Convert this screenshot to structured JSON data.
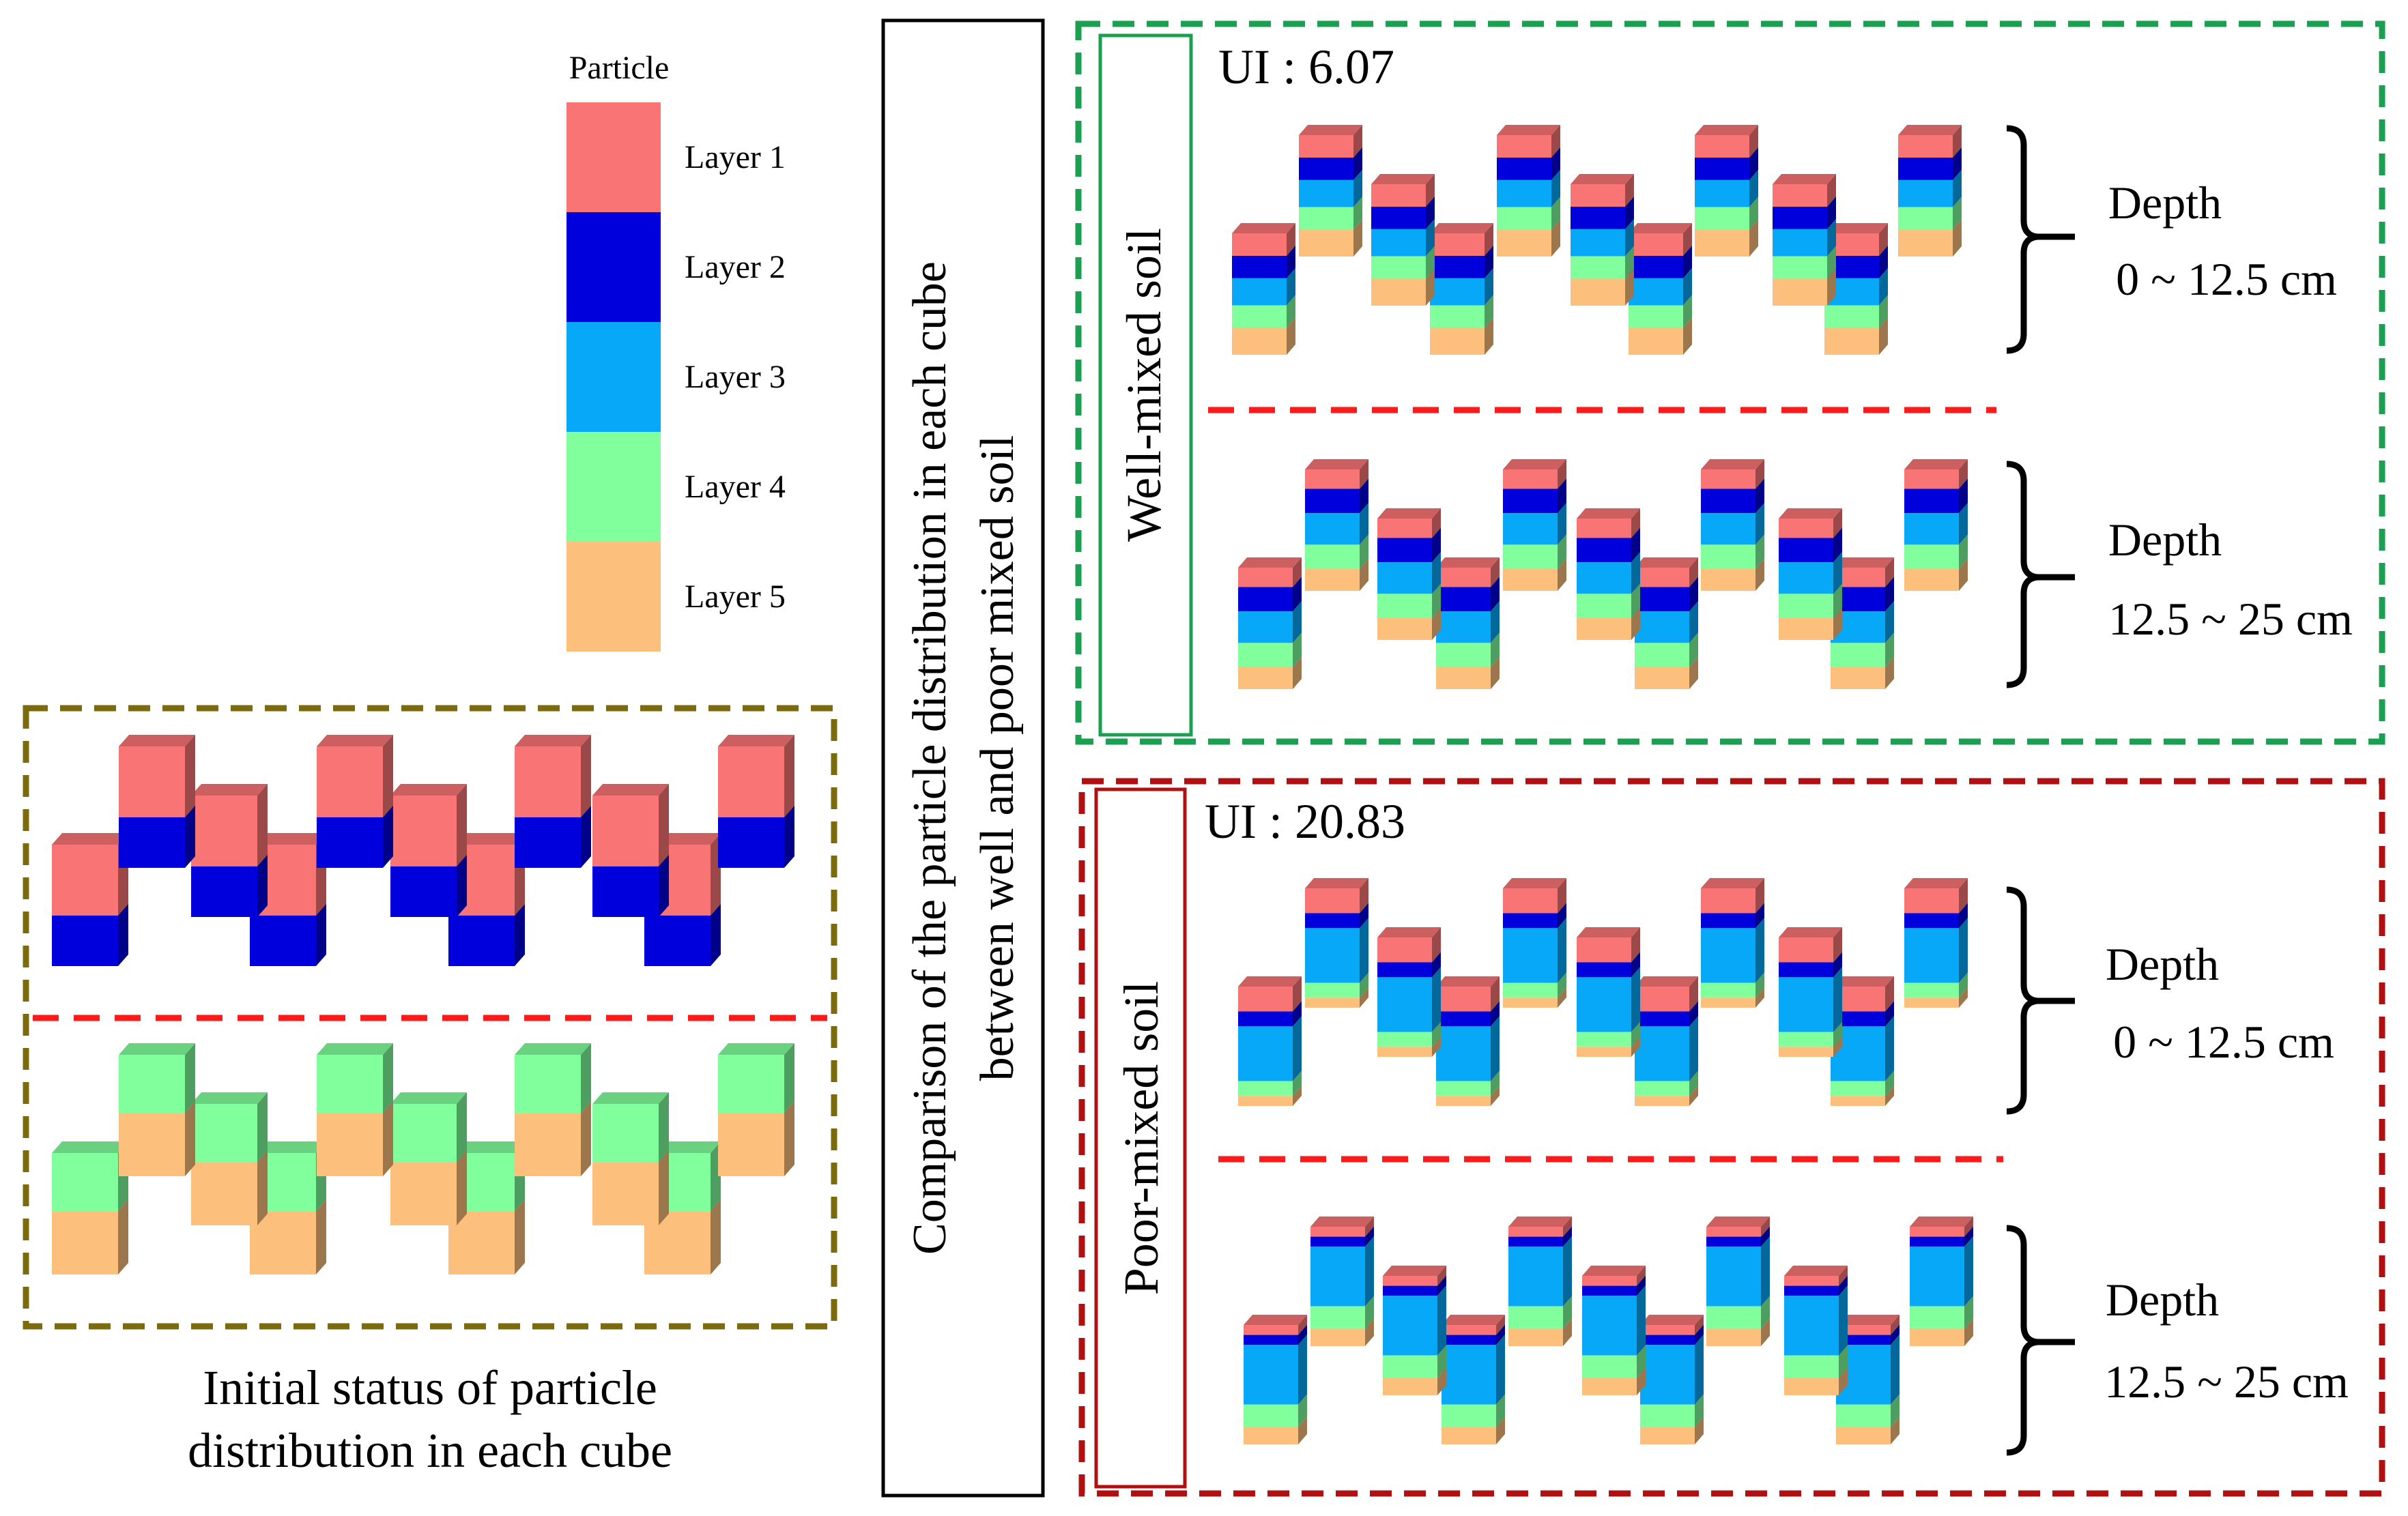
{
  "colors": {
    "layer1": "#F97474",
    "layer2": "#0000DC",
    "layer3": "#08A8F8",
    "layer4": "#80FF9C",
    "layer5": "#FCC07C",
    "initial_frame": "#7B6A0E",
    "well_frame": "#1AA050",
    "poor_frame": "#B01010",
    "divider": "#FF1A1A"
  },
  "legend": {
    "title": "Particle",
    "items": [
      {
        "label": "Layer 1",
        "color_key": "layer1"
      },
      {
        "label": "Layer 2",
        "color_key": "layer2"
      },
      {
        "label": "Layer 3",
        "color_key": "layer3"
      },
      {
        "label": "Layer 4",
        "color_key": "layer4"
      },
      {
        "label": "Layer 5",
        "color_key": "layer5"
      }
    ]
  },
  "initial": {
    "caption_line1": "Initial status of particle",
    "caption_line2": "distribution in each cube",
    "top_stack": [
      {
        "layer": 1,
        "weight": 1.4
      },
      {
        "layer": 2,
        "weight": 1
      }
    ],
    "bottom_stack": [
      {
        "layer": 4,
        "weight": 1.1
      },
      {
        "layer": 5,
        "weight": 1.2
      }
    ]
  },
  "comparison_title": {
    "line1": "Comparison of the particle distribution in each cube",
    "line2": "between well and poor mixed soil"
  },
  "well_mixed": {
    "label": "Well-mixed soil",
    "ui_text": "UI : 6.07",
    "depths": [
      {
        "label": "Depth",
        "range": "0 ~ 12.5 cm",
        "stack": [
          {
            "layer": 1,
            "weight": 1
          },
          {
            "layer": 2,
            "weight": 1
          },
          {
            "layer": 3,
            "weight": 1.2
          },
          {
            "layer": 4,
            "weight": 1
          },
          {
            "layer": 5,
            "weight": 1.2
          }
        ]
      },
      {
        "label": "Depth",
        "range": "12.5 ~ 25 cm",
        "stack": [
          {
            "layer": 1,
            "weight": 0.8
          },
          {
            "layer": 2,
            "weight": 1
          },
          {
            "layer": 3,
            "weight": 1.3
          },
          {
            "layer": 4,
            "weight": 1
          },
          {
            "layer": 5,
            "weight": 0.9
          }
        ]
      }
    ]
  },
  "poor_mixed": {
    "label": "Poor-mixed soil",
    "ui_text": "UI : 20.83",
    "depths": [
      {
        "label": "Depth",
        "range": "0 ~ 12.5 cm",
        "stack": [
          {
            "layer": 1,
            "weight": 1
          },
          {
            "layer": 2,
            "weight": 0.6
          },
          {
            "layer": 3,
            "weight": 2.2
          },
          {
            "layer": 4,
            "weight": 0.6
          },
          {
            "layer": 5,
            "weight": 0.4
          }
        ]
      },
      {
        "label": "Depth",
        "range": "12.5 ~ 25 cm",
        "stack": [
          {
            "layer": 1,
            "weight": 0.4
          },
          {
            "layer": 2,
            "weight": 0.4
          },
          {
            "layer": 3,
            "weight": 2.4
          },
          {
            "layer": 4,
            "weight": 0.9
          },
          {
            "layer": 5,
            "weight": 0.7
          }
        ]
      }
    ]
  }
}
